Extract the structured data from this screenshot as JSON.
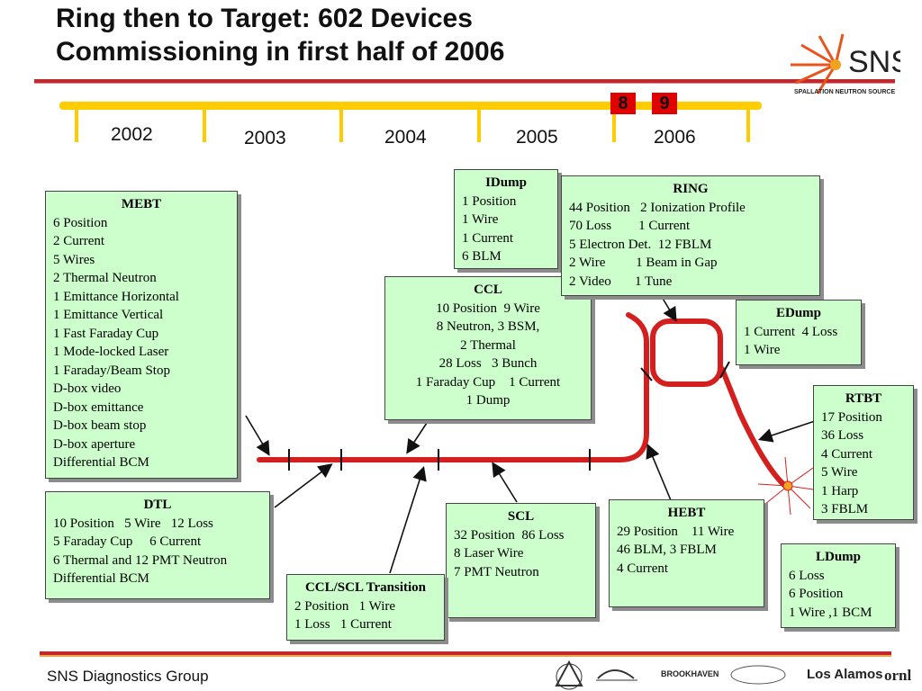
{
  "title": {
    "line1": "Ring then to Target: 602 Devices",
    "line2": "Commissioning in first half of 2006"
  },
  "logo": {
    "text": "SNS",
    "subtitle": "SPALLATION NEUTRON SOURCE"
  },
  "timeline": {
    "years": [
      "2002",
      "2003",
      "2004",
      "2005",
      "2006"
    ],
    "markers": [
      "8",
      "9"
    ]
  },
  "boxes": {
    "mebt": {
      "title": "MEBT",
      "lines": [
        "6 Position",
        "2 Current",
        "5 Wires",
        "2 Thermal Neutron",
        "1 Emittance Horizontal",
        "1 Emittance Vertical",
        "1 Fast Faraday Cup",
        "1 Mode-locked Laser",
        "1 Faraday/Beam Stop",
        "D-box video",
        "D-box emittance",
        "D-box beam stop",
        "D-box aperture",
        "Differential BCM"
      ]
    },
    "dtl": {
      "title": "DTL",
      "lines": [
        "10 Position   5 Wire   12 Loss",
        "5 Faraday Cup     6 Current",
        "6 Thermal and 12 PMT Neutron",
        "Differential BCM"
      ]
    },
    "ccl": {
      "title": "CCL",
      "lines": [
        "10 Position  9 Wire",
        "8 Neutron, 3 BSM,",
        "2 Thermal",
        "28 Loss   3 Bunch",
        "1 Faraday Cup    1 Current",
        "1 Dump"
      ]
    },
    "idump": {
      "title": "IDump",
      "lines": [
        "1 Position",
        "1 Wire",
        "1 Current",
        "6 BLM"
      ]
    },
    "ring": {
      "title": "RING",
      "lines": [
        "44 Position   2 Ionization Profile",
        "70 Loss        1 Current",
        "5 Electron Det.  12 FBLM",
        "2 Wire         1 Beam in Gap",
        "2 Video       1 Tune"
      ]
    },
    "edump": {
      "title": "EDump",
      "lines": [
        "1 Current  4 Loss",
        "1 Wire"
      ]
    },
    "rtbt": {
      "title": "RTBT",
      "lines": [
        "17 Position",
        "36 Loss",
        "4 Current",
        "5 Wire",
        "1 Harp",
        "3 FBLM"
      ]
    },
    "ldump": {
      "title": "LDump",
      "lines": [
        "6 Loss",
        "6 Position",
        "1 Wire ,1 BCM"
      ]
    },
    "hebt": {
      "title": "HEBT",
      "lines": [
        "29 Position    11 Wire",
        "46 BLM, 3 FBLM",
        "4 Current"
      ]
    },
    "scl": {
      "title": "SCL",
      "lines": [
        "32 Position  86 Loss",
        "8 Laser Wire",
        "7 PMT Neutron"
      ]
    },
    "cclscl": {
      "title": "CCL/SCL Transition",
      "lines": [
        "2 Position   1 Wire",
        "1 Loss   1 Current"
      ]
    }
  },
  "footer": {
    "text": "SNS Diagnostics Group"
  },
  "partners": [
    "BROOKHAVEN",
    "Los Alamos",
    "ornl"
  ],
  "colors": {
    "beamline": "#d41f1f",
    "box_fill": "#ccffcc",
    "timeline": "#ffcc00",
    "accent_red": "#c0282d"
  }
}
